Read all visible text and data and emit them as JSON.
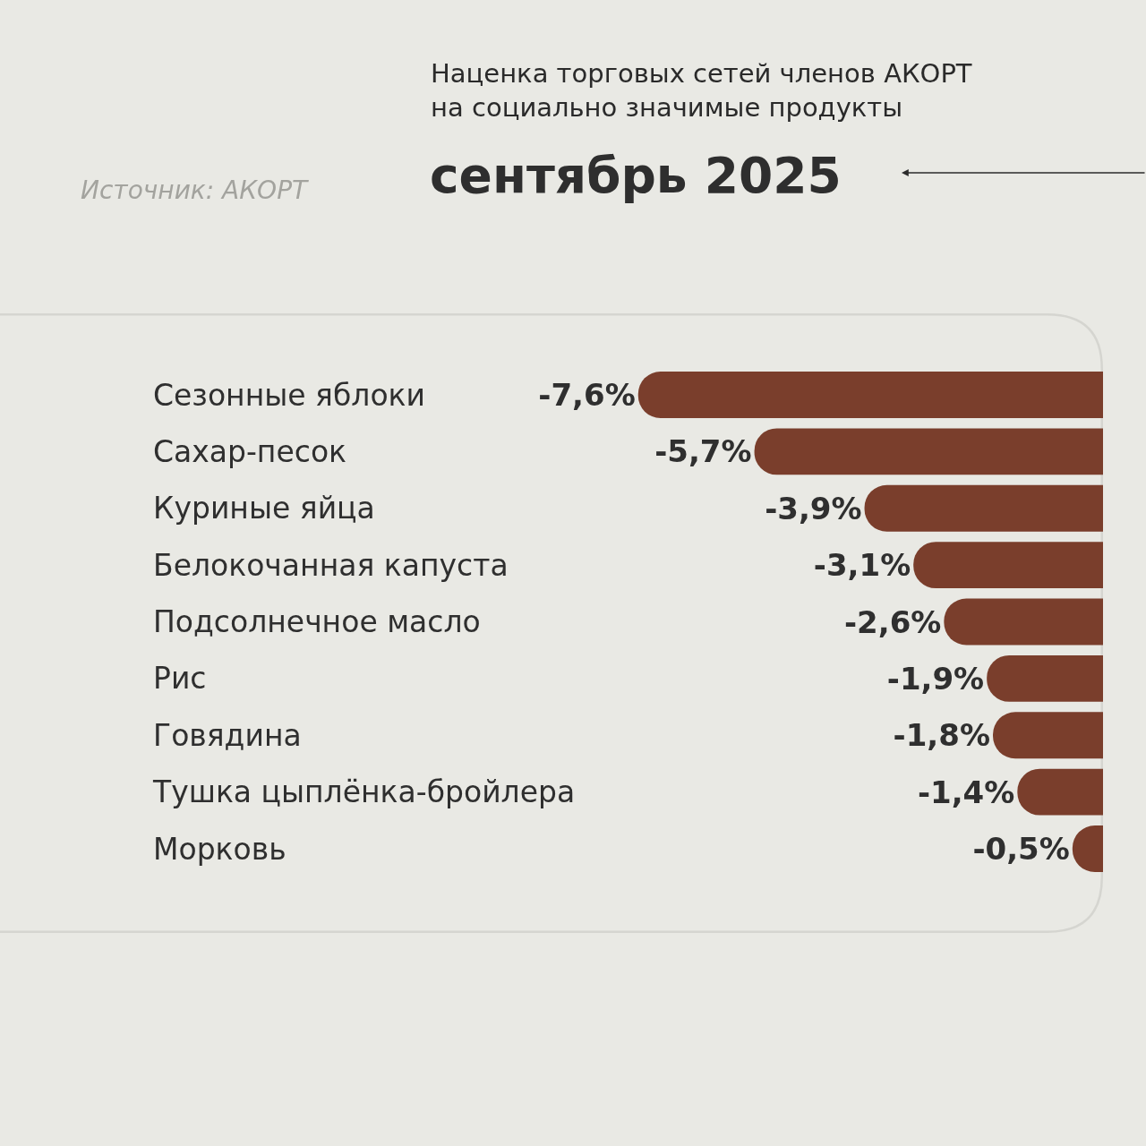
{
  "chart_data": {
    "type": "bar",
    "orientation": "horizontal",
    "title": "Наценка торговых сетей членов АКОРТ\nна социально значимые продукты",
    "subtitle": "сентябрь 2025",
    "annotations": [
      "Источник: АКОРТ"
    ],
    "categories": [
      "Сезонные яблоки",
      "Сахар-песок",
      "Куриные яйца",
      "Белокочанная капуста",
      "Подсолнечное масло",
      "Рис",
      "Говядина",
      "Тушка цыплёнка-бройлера",
      "Морковь"
    ],
    "values": [
      -7.6,
      -5.7,
      -3.9,
      -3.1,
      -2.6,
      -1.9,
      -1.8,
      -1.4,
      -0.5
    ],
    "value_labels": [
      "-7,6%",
      "-5,7%",
      "-3,9%",
      "-3,1%",
      "-2,6%",
      "-1,9%",
      "-1,8%",
      "-1,4%",
      "-0,5%"
    ],
    "color": "#7a3e2c",
    "tick_labels": "y"
  }
}
